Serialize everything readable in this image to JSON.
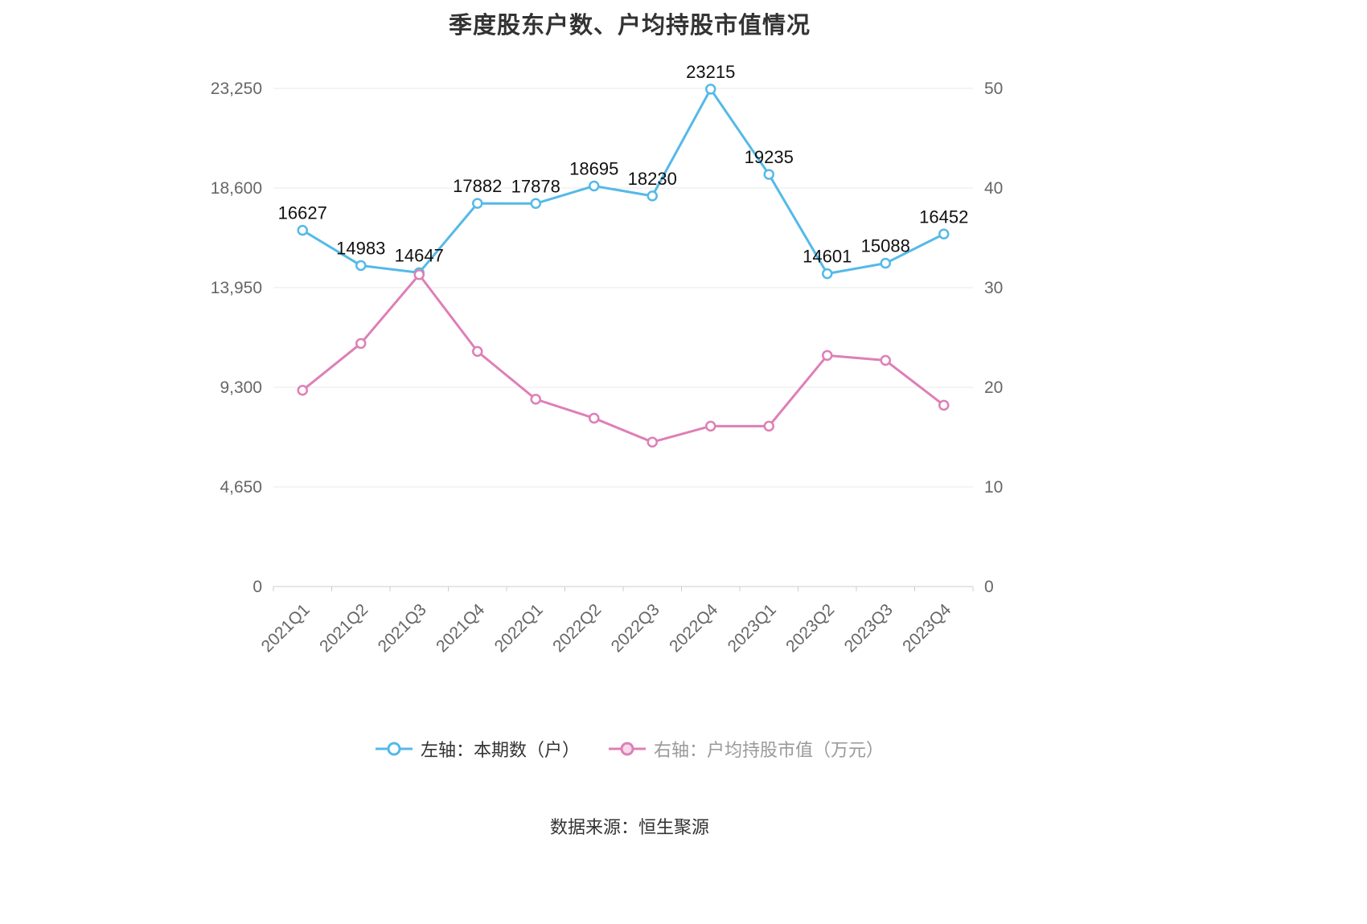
{
  "chart_data": {
    "type": "line",
    "title": "季度股东户数、户均持股市值情况",
    "categories": [
      "2021Q1",
      "2021Q2",
      "2021Q3",
      "2021Q4",
      "2022Q1",
      "2022Q2",
      "2022Q3",
      "2022Q4",
      "2023Q1",
      "2023Q2",
      "2023Q3",
      "2023Q4"
    ],
    "series": [
      {
        "name": "左轴：本期数（户）",
        "axis": "left",
        "color": "#54b9e8",
        "values": [
          16627,
          14983,
          14647,
          17882,
          17878,
          18695,
          18230,
          23215,
          19235,
          14601,
          15088,
          16452
        ],
        "show_labels": true
      },
      {
        "name": "右轴：户均持股市值（万元）",
        "axis": "right",
        "color": "#de7fb7",
        "values": [
          19.7,
          24.4,
          31.3,
          23.6,
          18.8,
          16.9,
          14.5,
          16.1,
          16.1,
          23.2,
          22.7,
          18.2
        ],
        "show_labels": false
      }
    ],
    "left_axis": {
      "min": 0,
      "max": 23250,
      "ticks": [
        "0",
        "4,650",
        "9,300",
        "13,950",
        "18,600",
        "23,250"
      ]
    },
    "right_axis": {
      "min": 0,
      "max": 50,
      "ticks": [
        "0",
        "10",
        "20",
        "30",
        "40",
        "50"
      ]
    },
    "grid": true,
    "legend_position": "bottom"
  },
  "legend": {
    "left": {
      "label": "左轴：本期数（户）"
    },
    "right": {
      "label": "右轴：户均持股市值（万元）"
    }
  },
  "footer": {
    "source": "数据来源：恒生聚源"
  }
}
